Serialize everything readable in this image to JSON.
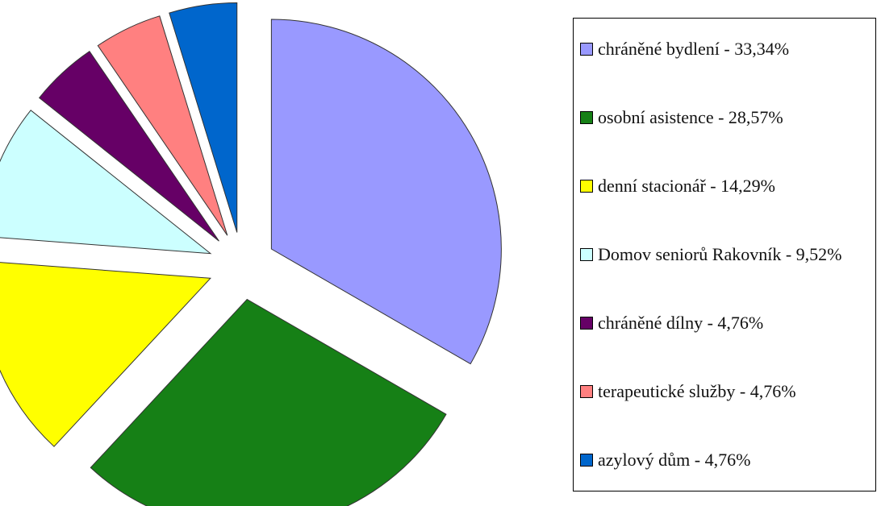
{
  "chart_data": {
    "type": "pie",
    "categories": [
      "chráněné bydlení - 33,34%",
      "osobní asistence - 28,57%",
      "denní stacionář - 14,29%",
      "Domov seniorů Rakovník - 9,52%",
      "chráněné dílny - 4,76%",
      "terapeutické služby - 4,76%",
      "azylový dům - 4,76%"
    ],
    "values": [
      33.34,
      28.57,
      14.29,
      9.52,
      4.76,
      4.76,
      4.76
    ],
    "colors": [
      "#9999ff",
      "#168016",
      "#ffff00",
      "#ccffff",
      "#660066",
      "#ff8080",
      "#0066cc"
    ],
    "legend": "right"
  }
}
